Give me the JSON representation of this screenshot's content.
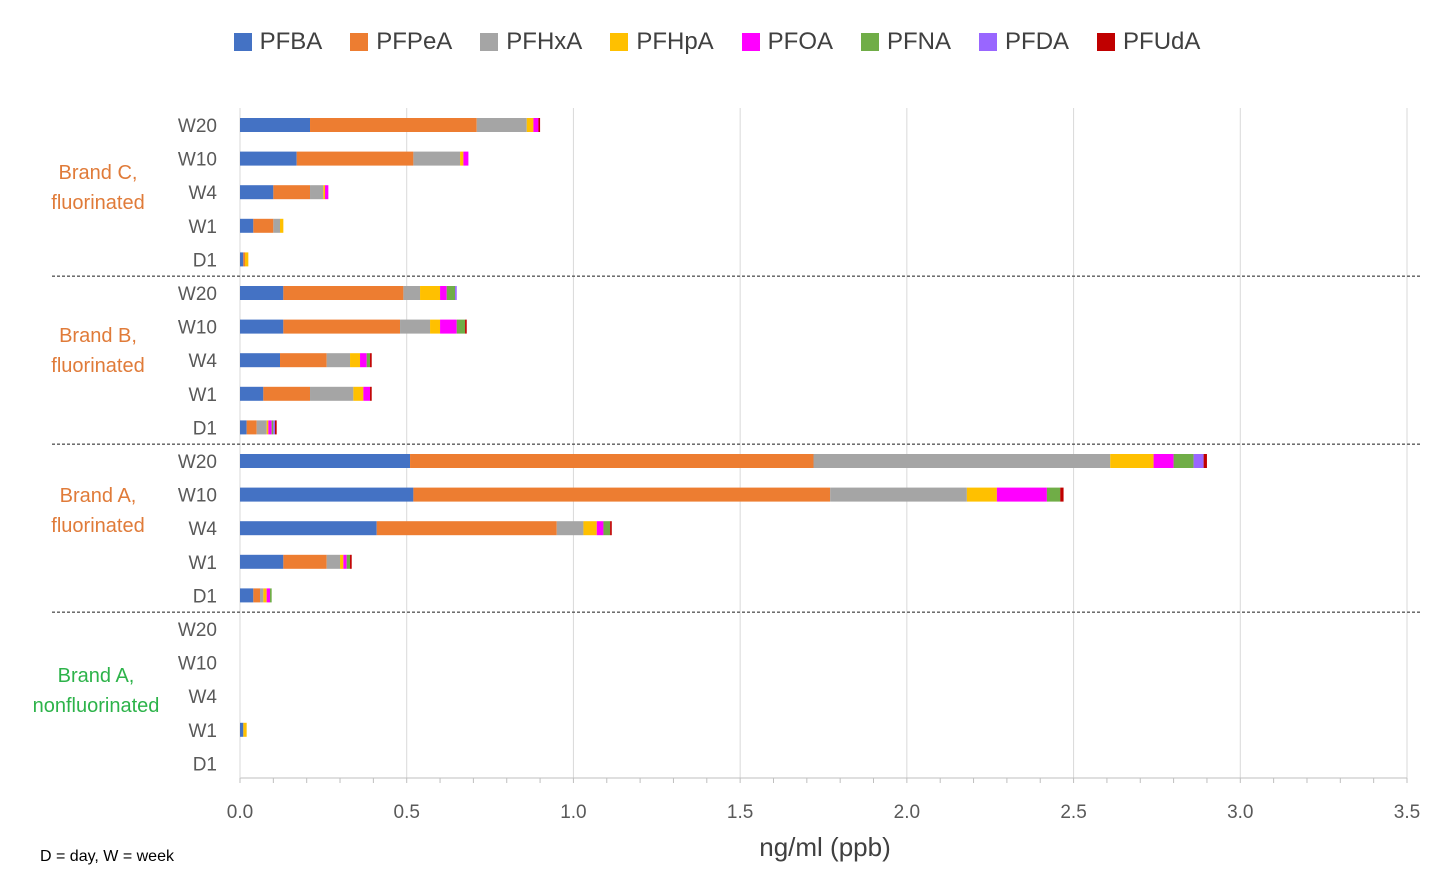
{
  "legend": [
    {
      "name": "PFBA",
      "color": "#4472c4"
    },
    {
      "name": "PFPeA",
      "color": "#ed7d31"
    },
    {
      "name": "PFHxA",
      "color": "#a5a5a5"
    },
    {
      "name": "PFHpA",
      "color": "#ffc000"
    },
    {
      "name": "PFOA",
      "color": "#ff00ff"
    },
    {
      "name": "PFNA",
      "color": "#70ad47"
    },
    {
      "name": "PFDA",
      "color": "#9966ff"
    },
    {
      "name": "PFUdA",
      "color": "#c00000"
    }
  ],
  "groups": [
    {
      "label_line1": "Brand C,",
      "label_line2": "fluorinated",
      "color": "#e07b39"
    },
    {
      "label_line1": "Brand B,",
      "label_line2": "fluorinated",
      "color": "#e07b39"
    },
    {
      "label_line1": "Brand A,",
      "label_line2": "fluorinated",
      "color": "#e07b39"
    },
    {
      "label_line1": "Brand A,",
      "label_line2": "nonfluorinated",
      "color": "#2db34a"
    }
  ],
  "footnote": "D = day, W = week",
  "chart_data": {
    "type": "bar",
    "orientation": "horizontal",
    "stacked": true,
    "xlabel": "ng/ml (ppb)",
    "xlim": [
      0,
      3.5
    ],
    "xticks": [
      "0.0",
      "0.5",
      "1.0",
      "1.5",
      "2.0",
      "2.5",
      "3.0",
      "3.5"
    ],
    "grid": true,
    "legend_position": "top",
    "categories": [
      "W20",
      "W10",
      "W4",
      "W1",
      "D1",
      "W20",
      "W10",
      "W4",
      "W1",
      "D1",
      "W20",
      "W10",
      "W4",
      "W1",
      "D1",
      "W20",
      "W10",
      "W4",
      "W1",
      "D1"
    ],
    "series": [
      {
        "name": "PFBA",
        "values": [
          0.21,
          0.17,
          0.1,
          0.04,
          0.01,
          0.13,
          0.13,
          0.12,
          0.07,
          0.02,
          0.51,
          0.52,
          0.41,
          0.13,
          0.04,
          0,
          0,
          0,
          0.01,
          0
        ]
      },
      {
        "name": "PFPeA",
        "values": [
          0.5,
          0.35,
          0.11,
          0.06,
          0.005,
          0.36,
          0.35,
          0.14,
          0.14,
          0.03,
          1.21,
          1.25,
          0.54,
          0.13,
          0.02,
          0,
          0,
          0,
          0,
          0
        ]
      },
      {
        "name": "PFHxA",
        "values": [
          0.15,
          0.14,
          0.04,
          0.02,
          0,
          0.05,
          0.09,
          0.07,
          0.13,
          0.03,
          0.89,
          0.41,
          0.08,
          0.04,
          0.01,
          0,
          0,
          0,
          0,
          0
        ]
      },
      {
        "name": "PFHpA",
        "values": [
          0.02,
          0.01,
          0.005,
          0.01,
          0.01,
          0.06,
          0.03,
          0.03,
          0.03,
          0.005,
          0.13,
          0.09,
          0.04,
          0.01,
          0.01,
          0,
          0,
          0,
          0.01,
          0
        ]
      },
      {
        "name": "PFOA",
        "values": [
          0.015,
          0.015,
          0.01,
          0,
          0,
          0.02,
          0.05,
          0.02,
          0.02,
          0.01,
          0.06,
          0.15,
          0.02,
          0.01,
          0.01,
          0,
          0,
          0,
          0,
          0
        ]
      },
      {
        "name": "PFNA",
        "values": [
          0,
          0,
          0,
          0,
          0,
          0.025,
          0.025,
          0.01,
          0,
          0.005,
          0.06,
          0.04,
          0.02,
          0.01,
          0.005,
          0,
          0,
          0,
          0,
          0
        ]
      },
      {
        "name": "PFDA",
        "values": [
          0,
          0,
          0,
          0,
          0,
          0.005,
          0,
          0,
          0,
          0.005,
          0.03,
          0,
          0,
          0,
          0,
          0,
          0,
          0,
          0,
          0
        ]
      },
      {
        "name": "PFUdA",
        "values": [
          0.005,
          0,
          0,
          0,
          0,
          0,
          0.005,
          0.005,
          0.005,
          0.005,
          0.01,
          0.01,
          0.005,
          0.005,
          0,
          0,
          0,
          0,
          0,
          0
        ]
      }
    ]
  }
}
